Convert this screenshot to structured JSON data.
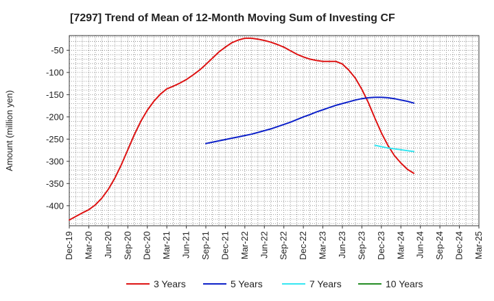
{
  "chart_data": {
    "type": "line",
    "title": "[7297]  Trend of Mean of 12-Month Moving Sum of Investing CF",
    "xlabel": "",
    "ylabel": "Amount (million yen)",
    "ylim": [
      -445,
      -17
    ],
    "yticks": [
      -50,
      -100,
      -150,
      -200,
      -250,
      -300,
      -350,
      -400
    ],
    "ytick_labels": [
      "-50",
      "-100",
      "-150",
      "-200",
      "-250",
      "-300",
      "-350",
      "-400"
    ],
    "xtick_labels": [
      "Dec-19",
      "Mar-20",
      "Jun-20",
      "Sep-20",
      "Dec-20",
      "Mar-21",
      "Jun-21",
      "Sep-21",
      "Dec-21",
      "Mar-22",
      "Jun-22",
      "Sep-22",
      "Dec-22",
      "Mar-23",
      "Jun-23",
      "Sep-23",
      "Dec-23",
      "Mar-24",
      "Jun-24",
      "Sep-24",
      "Dec-24",
      "Mar-25"
    ],
    "grid": true,
    "legend_position": "bottom",
    "series": [
      {
        "name": "3 Years",
        "color": "#dd1111",
        "start_month_index": 0,
        "values": [
          -432,
          -424,
          -416,
          -409,
          -398,
          -383,
          -363,
          -338,
          -308,
          -274,
          -240,
          -210,
          -185,
          -165,
          -149,
          -137,
          -131,
          -124,
          -116,
          -106,
          -95,
          -82,
          -68,
          -54,
          -43,
          -33,
          -27,
          -23,
          -23,
          -25,
          -28,
          -32,
          -37,
          -43,
          -51,
          -59,
          -65,
          -70,
          -73,
          -75,
          -75,
          -75,
          -81,
          -95,
          -113,
          -138,
          -168,
          -203,
          -236,
          -264,
          -287,
          -304,
          -318,
          -327
        ]
      },
      {
        "name": "5 Years",
        "color": "#0a1ec8",
        "start_month_index": 21,
        "values": [
          -260,
          -257,
          -254,
          -251,
          -248,
          -245,
          -242,
          -239,
          -235,
          -231,
          -227,
          -222,
          -217,
          -212,
          -206,
          -200,
          -195,
          -189,
          -184,
          -179,
          -174,
          -170,
          -166,
          -162,
          -159,
          -157,
          -156,
          -156,
          -157,
          -159,
          -162,
          -165,
          -169
        ]
      },
      {
        "name": "7 Years",
        "color": "#33e6f2",
        "start_month_index": 47,
        "values": [
          -264,
          -267,
          -270,
          -272,
          -274,
          -276,
          -278
        ]
      },
      {
        "name": "10 Years",
        "color": "#228b22",
        "start_month_index": 0,
        "values": []
      }
    ]
  }
}
